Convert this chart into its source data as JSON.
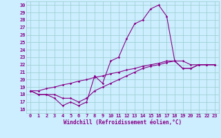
{
  "xlabel": "Windchill (Refroidissement éolien,°C)",
  "bg_color": "#cceeff",
  "line_color": "#880088",
  "grid_color": "#99cccc",
  "xlim": [
    -0.5,
    23.5
  ],
  "ylim": [
    15.5,
    30.5
  ],
  "yticks": [
    16,
    17,
    18,
    19,
    20,
    21,
    22,
    23,
    24,
    25,
    26,
    27,
    28,
    29,
    30
  ],
  "xticks": [
    0,
    1,
    2,
    3,
    4,
    5,
    6,
    7,
    8,
    9,
    10,
    11,
    12,
    13,
    14,
    15,
    16,
    17,
    18,
    19,
    20,
    21,
    22,
    23
  ],
  "hours": [
    0,
    1,
    2,
    3,
    4,
    5,
    6,
    7,
    8,
    9,
    10,
    11,
    12,
    13,
    14,
    15,
    16,
    17,
    18,
    19,
    20,
    21,
    22,
    23
  ],
  "main_line": [
    18.5,
    18.0,
    18.0,
    17.5,
    16.5,
    17.0,
    16.5,
    17.0,
    20.5,
    19.5,
    22.5,
    23.0,
    25.5,
    27.5,
    28.0,
    29.5,
    30.0,
    28.5,
    22.5,
    21.5,
    21.5,
    22.0,
    22.0,
    22.0
  ],
  "low_line": [
    18.5,
    18.0,
    18.0,
    18.0,
    17.5,
    17.5,
    17.0,
    17.5,
    18.5,
    19.0,
    19.5,
    20.0,
    20.5,
    21.0,
    21.5,
    21.8,
    22.0,
    22.3,
    22.5,
    22.5,
    22.0,
    22.0,
    22.0,
    22.0
  ],
  "high_line": [
    18.5,
    18.5,
    18.8,
    19.0,
    19.3,
    19.5,
    19.8,
    20.0,
    20.3,
    20.5,
    20.8,
    21.0,
    21.3,
    21.5,
    21.8,
    22.0,
    22.2,
    22.5,
    22.5,
    21.5,
    21.5,
    22.0,
    22.0,
    22.0
  ]
}
